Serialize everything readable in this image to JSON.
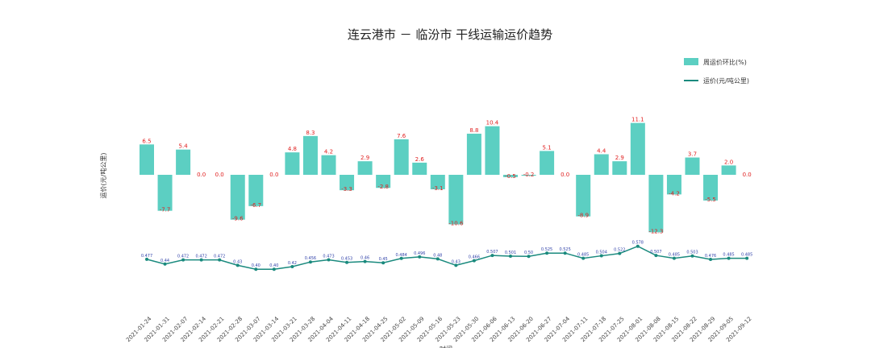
{
  "chart_data": {
    "type": "bar",
    "title": "连云港市 － 临汾市 干线运输运价趋势",
    "xlabel": "时间",
    "ylabel": "运价(元/吨公里)",
    "legend": {
      "position": "top-right"
    },
    "grid": false,
    "categories": [
      "2021-01-24",
      "2021-01-31",
      "2021-02-07",
      "2021-02-14",
      "2021-02-21",
      "2021-02-28",
      "2021-03-07",
      "2021-03-14",
      "2021-03-21",
      "2021-03-28",
      "2021-04-04",
      "2021-04-11",
      "2021-04-18",
      "2021-04-25",
      "2021-05-02",
      "2021-05-09",
      "2021-05-16",
      "2021-05-23",
      "2021-05-30",
      "2021-06-06",
      "2021-06-13",
      "2021-06-20",
      "2021-06-27",
      "2021-07-04",
      "2021-07-11",
      "2021-07-18",
      "2021-07-25",
      "2021-08-01",
      "2021-08-08",
      "2021-08-15",
      "2021-08-22",
      "2021-08-29",
      "2021-09-05",
      "2021-09-12"
    ],
    "series": [
      {
        "name": "周运价环比(%)",
        "type": "bar",
        "color": "#5ccfc2",
        "values": [
          6.5,
          -7.7,
          5.4,
          0.0,
          0.0,
          -9.6,
          -6.7,
          0.0,
          4.8,
          8.3,
          4.2,
          -3.3,
          2.9,
          -2.8,
          7.6,
          2.6,
          -3.1,
          -10.6,
          8.8,
          10.4,
          -0.5,
          -0.2,
          5.1,
          0.0,
          -8.9,
          4.4,
          2.9,
          11.1,
          -12.3,
          -4.2,
          3.7,
          -5.5,
          2.0,
          0.0
        ],
        "labels": [
          "6.5",
          "-7.7",
          "5.4",
          "0.0",
          "0.0",
          "-9.6",
          "-6.7",
          "0.0",
          "4.8",
          "8.3",
          "4.2",
          "-3.3",
          "2.9",
          "-2.8",
          "7.6",
          "2.6",
          "-3.1",
          "-10.6",
          "8.8",
          "10.4",
          "-0.5",
          "-0.2",
          "5.1",
          "0.0",
          "-8.9",
          "4.4",
          "2.9",
          "11.1",
          "-12.3",
          "-4.2",
          "3.7",
          "-5.5",
          "2.0",
          "0.0"
        ]
      },
      {
        "name": "运价(元/吨公里)",
        "type": "line",
        "color": "#1a8a7e",
        "values": [
          0.477,
          0.44,
          0.472,
          0.472,
          0.472,
          0.43,
          0.4,
          0.4,
          0.42,
          0.456,
          0.473,
          0.453,
          0.46,
          0.45,
          0.484,
          0.496,
          0.48,
          0.43,
          0.466,
          0.507,
          0.501,
          0.5,
          0.525,
          0.525,
          0.485,
          0.504,
          0.522,
          0.578,
          0.507,
          0.485,
          0.503,
          0.476,
          0.485,
          0.485
        ],
        "labels": [
          "0.477",
          "0.44",
          "0.472",
          "0.472",
          "0.472",
          "0.43",
          "0.40",
          "0.40",
          "0.42",
          "0.456",
          "0.473",
          "0.453",
          "0.46",
          "0.45",
          "0.484",
          "0.496",
          "0.48",
          "0.43",
          "0.466",
          "0.507",
          "0.501",
          "0.50",
          "0.525",
          "0.525",
          "0.485",
          "0.504",
          "0.522",
          "0.578",
          "0.507",
          "0.485",
          "0.503",
          "0.476",
          "0.485",
          "0.485"
        ]
      }
    ]
  }
}
